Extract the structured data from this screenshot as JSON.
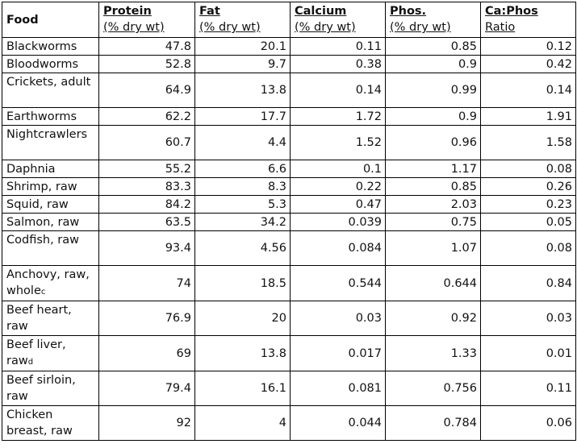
{
  "table": {
    "header": [
      {
        "main": "Food"
      },
      {
        "main": "Protein",
        "sub": "(% dry wt)"
      },
      {
        "main": "Fat",
        "sub": "(% dry wt)"
      },
      {
        "main": "Calcium",
        "sub": "(% dry wt)"
      },
      {
        "main": "Phos.",
        "sub": "(% dry wt)"
      },
      {
        "main": "Ca:Phos",
        "sub": "Ratio"
      }
    ],
    "rows": [
      {
        "food": "Blackworms",
        "cells": [
          "47.8",
          "20.1",
          "0.11",
          "0.85",
          "0.12"
        ]
      },
      {
        "food": "Bloodworms",
        "cells": [
          "52.8",
          "9.7",
          "0.38",
          "0.9",
          "0.42"
        ]
      },
      {
        "food": "Crickets, adult",
        "cells": [
          "64.9",
          "13.8",
          "0.14",
          "0.99",
          "0.14"
        ]
      },
      {
        "food": "Earthworms",
        "cells": [
          "62.2",
          "17.7",
          "1.72",
          "0.9",
          "1.91"
        ]
      },
      {
        "food": "Nightcrawlers",
        "cells": [
          "60.7",
          "4.4",
          "1.52",
          "0.96",
          "1.58"
        ]
      },
      {
        "food": "Daphnia",
        "cells": [
          "55.2",
          "6.6",
          "0.1",
          "1.17",
          "0.08"
        ]
      },
      {
        "food": "Shrimp, raw",
        "cells": [
          "83.3",
          "8.3",
          "0.22",
          "0.85",
          "0.26"
        ]
      },
      {
        "food": "Squid, raw",
        "cells": [
          "84.2",
          "5.3",
          "0.47",
          "2.03",
          "0.23"
        ]
      },
      {
        "food": "Salmon, raw",
        "cells": [
          "63.5",
          "34.2",
          "0.039",
          "0.75",
          "0.05"
        ]
      },
      {
        "food": "Codfish, raw",
        "cells": [
          "93.4",
          "4.56",
          "0.084",
          "1.07",
          "0.08"
        ]
      },
      {
        "food": "Anchovy, raw, whole",
        "note": "c",
        "cells": [
          "74",
          "18.5",
          "0.544",
          "0.644",
          "0.84"
        ]
      },
      {
        "food": "Beef heart, raw",
        "cells": [
          "76.9",
          "20",
          "0.03",
          "0.92",
          "0.03"
        ]
      },
      {
        "food": "Beef liver, raw",
        "note": "d",
        "cells": [
          "69",
          "13.8",
          "0.017",
          "1.33",
          "0.01"
        ]
      },
      {
        "food": "Beef sirloin, raw",
        "cells": [
          "79.4",
          "16.1",
          "0.081",
          "0.756",
          "0.11"
        ]
      },
      {
        "food": "Chicken breast, raw",
        "cells": [
          "92",
          "4",
          "0.044",
          "0.784",
          "0.06"
        ]
      }
    ]
  }
}
